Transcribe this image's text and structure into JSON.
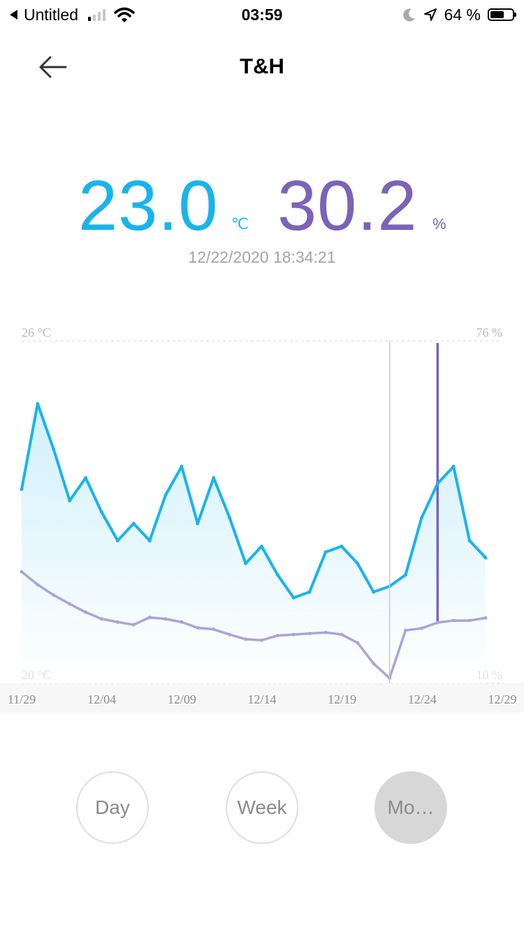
{
  "status_bar": {
    "back_app": "Untitled",
    "time": "03:59",
    "battery": "64 %",
    "battery_level_pct": 64,
    "signal_bars_on": 1,
    "icons": [
      "back-triangle-icon",
      "signal-icon",
      "wifi-icon",
      "moon-icon",
      "location-arrow-icon",
      "battery-icon"
    ]
  },
  "nav": {
    "title": "T&H",
    "back_icon": "back-arrow-icon"
  },
  "reading": {
    "temperature": "23.0",
    "temperature_unit": "℃",
    "humidity": "30.2",
    "humidity_unit": "%",
    "timestamp": "12/22/2020 18:34:21"
  },
  "colors": {
    "temperature": "#19b3ec",
    "humidity": "#7a63b8",
    "humidity_light": "#a9a4d8"
  },
  "chart_data": {
    "type": "line",
    "left_axis": {
      "top_label": "26 °C",
      "bottom_label": "20 °C",
      "ylim": [
        20,
        26
      ]
    },
    "right_axis": {
      "top_label": "76 %",
      "bottom_label": "10 %",
      "ylim": [
        10,
        76
      ]
    },
    "x": [
      "11/29",
      "11/30",
      "12/01",
      "12/02",
      "12/03",
      "12/04",
      "12/05",
      "12/06",
      "12/07",
      "12/08",
      "12/09",
      "12/10",
      "12/11",
      "12/12",
      "12/13",
      "12/14",
      "12/15",
      "12/16",
      "12/17",
      "12/18",
      "12/19",
      "12/20",
      "12/21",
      "12/22",
      "12/23",
      "12/24",
      "12/25",
      "12/26",
      "12/27",
      "12/28"
    ],
    "x_ticks": [
      "11/29",
      "12/04",
      "12/09",
      "12/14",
      "12/19",
      "12/24",
      "12/29"
    ],
    "selected": "12/22",
    "series": [
      {
        "role": "temperature",
        "values": [
          23.4,
          24.9,
          24.1,
          23.2,
          23.6,
          23.0,
          22.5,
          22.8,
          22.5,
          23.3,
          23.8,
          22.8,
          23.6,
          22.9,
          22.1,
          22.4,
          21.9,
          21.5,
          21.6,
          22.3,
          22.4,
          22.1,
          21.6,
          21.7,
          21.9,
          22.9,
          23.5,
          23.8,
          22.5,
          22.2
        ]
      },
      {
        "role": "humidity",
        "values": [
          31.5,
          29.0,
          27.0,
          25.3,
          23.7,
          22.4,
          21.8,
          21.3,
          22.7,
          22.4,
          21.8,
          20.7,
          20.4,
          19.4,
          18.5,
          18.3,
          19.2,
          19.4,
          19.6,
          19.8,
          19.4,
          17.8,
          13.8,
          11.0,
          20.2,
          20.6,
          21.7,
          22.1,
          22.1,
          22.6
        ]
      },
      {
        "role": "humidity",
        "values": [
          null,
          null,
          null,
          null,
          null,
          null,
          null,
          null,
          null,
          null,
          null,
          null,
          null,
          null,
          null,
          null,
          null,
          null,
          null,
          null,
          null,
          null,
          null,
          null,
          null,
          null,
          75.6,
          null,
          null,
          null
        ]
      }
    ]
  },
  "periods": [
    {
      "label": "Day",
      "active": false
    },
    {
      "label": "Week",
      "active": false
    },
    {
      "label": "Mo…",
      "active": true
    }
  ]
}
